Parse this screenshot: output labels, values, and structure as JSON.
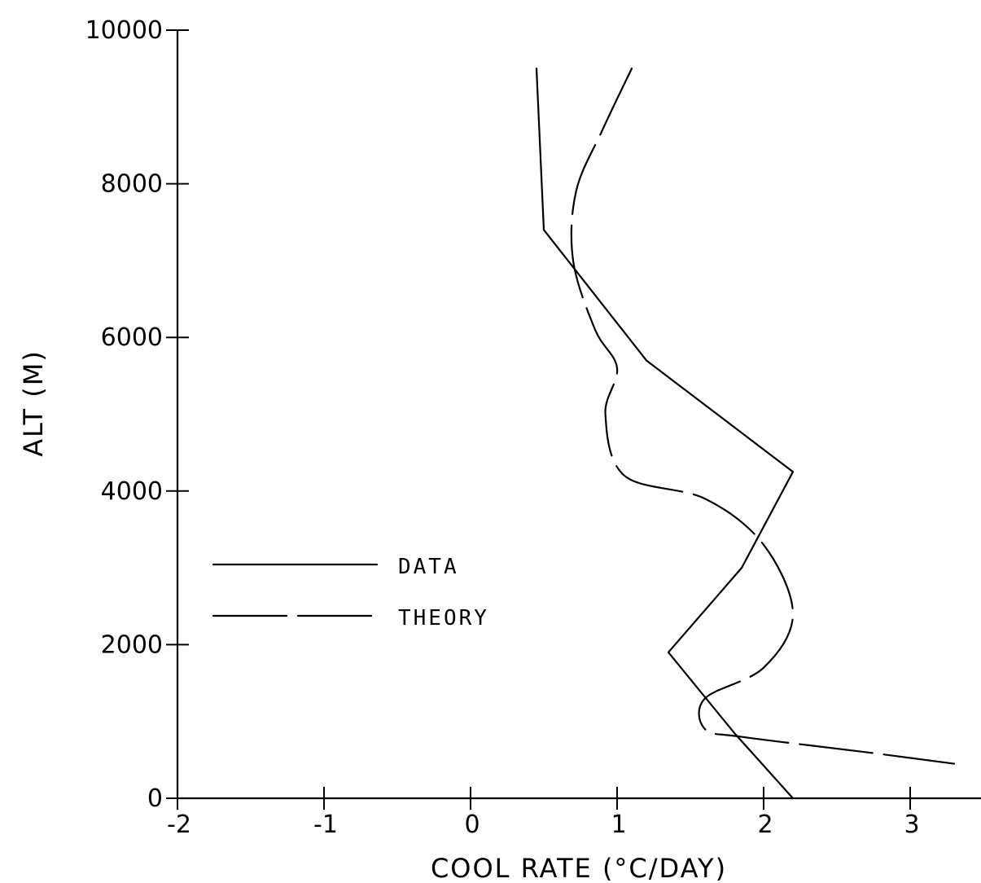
{
  "chart_data": {
    "type": "line",
    "title": "",
    "xlabel": "COOL RATE (°C/DAY)",
    "ylabel": "ALT (M)",
    "xlim": [
      -2,
      3.3
    ],
    "ylim": [
      0,
      10000
    ],
    "x_ticks": [
      {
        "value": -2,
        "label": "-2"
      },
      {
        "value": -1,
        "label": "-1"
      },
      {
        "value": 0,
        "label": "0"
      },
      {
        "value": 1,
        "label": "1"
      },
      {
        "value": 2,
        "label": "2"
      },
      {
        "value": 3,
        "label": "3"
      }
    ],
    "y_ticks": [
      {
        "value": 0,
        "label": "0"
      },
      {
        "value": 2000,
        "label": "2000"
      },
      {
        "value": 4000,
        "label": "4000"
      },
      {
        "value": 6000,
        "label": "6000"
      },
      {
        "value": 8000,
        "label": "8000"
      },
      {
        "value": 10000,
        "label": "10000"
      }
    ],
    "grid": false,
    "legend_position": "left-center",
    "series": [
      {
        "name": "DATA",
        "style": "solid",
        "color": "#000000",
        "points": [
          {
            "x": 0.45,
            "y": 9500
          },
          {
            "x": 0.5,
            "y": 7400
          },
          {
            "x": 1.2,
            "y": 5700
          },
          {
            "x": 2.2,
            "y": 4250
          },
          {
            "x": 1.85,
            "y": 3000
          },
          {
            "x": 1.35,
            "y": 1900
          },
          {
            "x": 1.8,
            "y": 850
          },
          {
            "x": 2.2,
            "y": 0
          }
        ]
      },
      {
        "name": "THEORY",
        "style": "dashed",
        "color": "#000000",
        "points": [
          {
            "x": 1.1,
            "y": 9500
          },
          {
            "x": 0.9,
            "y": 8700
          },
          {
            "x": 0.72,
            "y": 7900
          },
          {
            "x": 0.7,
            "y": 7000
          },
          {
            "x": 0.85,
            "y": 6100
          },
          {
            "x": 1.0,
            "y": 5600
          },
          {
            "x": 0.92,
            "y": 5000
          },
          {
            "x": 1.05,
            "y": 4200
          },
          {
            "x": 1.6,
            "y": 3900
          },
          {
            "x": 2.0,
            "y": 3300
          },
          {
            "x": 2.2,
            "y": 2400
          },
          {
            "x": 2.0,
            "y": 1700
          },
          {
            "x": 1.6,
            "y": 1300
          },
          {
            "x": 1.6,
            "y": 900
          },
          {
            "x": 1.85,
            "y": 800
          },
          {
            "x": 2.7,
            "y": 600
          },
          {
            "x": 3.3,
            "y": 450
          }
        ]
      }
    ]
  }
}
